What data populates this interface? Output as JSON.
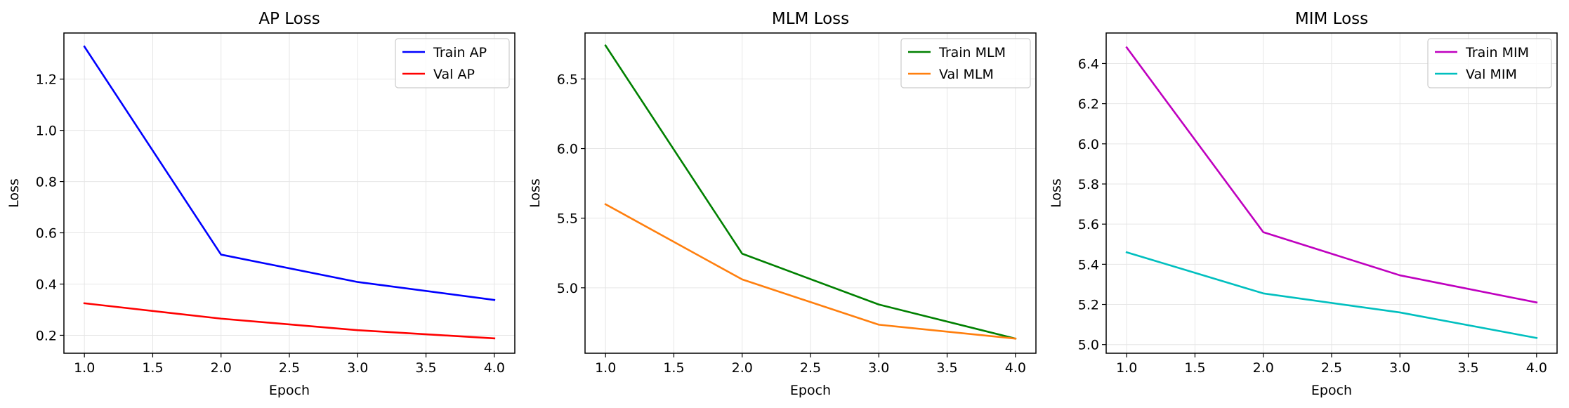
{
  "chart_data": [
    {
      "type": "line",
      "title": "AP Loss",
      "xlabel": "Epoch",
      "ylabel": "Loss",
      "xlim": [
        0.85,
        4.15
      ],
      "ylim": [
        0.13,
        1.38
      ],
      "xticks": [
        1.0,
        1.5,
        2.0,
        2.5,
        3.0,
        3.5,
        4.0
      ],
      "yticks": [
        0.2,
        0.4,
        0.6,
        0.8,
        1.0,
        1.2
      ],
      "tick_decimals": 1,
      "grid": true,
      "legend": "top-right",
      "x": [
        1,
        2,
        3,
        4
      ],
      "series": [
        {
          "name": "Train AP",
          "color": "#0000ff",
          "values": [
            1.327,
            0.515,
            0.408,
            0.338
          ]
        },
        {
          "name": "Val AP",
          "color": "#ff0000",
          "values": [
            0.325,
            0.265,
            0.22,
            0.188
          ]
        }
      ]
    },
    {
      "type": "line",
      "title": "MLM Loss",
      "xlabel": "Epoch",
      "ylabel": "Loss",
      "xlim": [
        0.85,
        4.15
      ],
      "ylim": [
        4.53,
        6.83
      ],
      "xticks": [
        1.0,
        1.5,
        2.0,
        2.5,
        3.0,
        3.5,
        4.0
      ],
      "yticks": [
        5.0,
        5.5,
        6.0,
        6.5
      ],
      "tick_decimals": 1,
      "grid": true,
      "legend": "top-right",
      "x": [
        1,
        2,
        3,
        4
      ],
      "series": [
        {
          "name": "Train MLM",
          "color": "#008000",
          "values": [
            6.74,
            5.245,
            4.88,
            4.635
          ]
        },
        {
          "name": "Val MLM",
          "color": "#ff7f0e",
          "values": [
            5.6,
            5.06,
            4.735,
            4.635
          ]
        }
      ]
    },
    {
      "type": "line",
      "title": "MIM Loss",
      "xlabel": "Epoch",
      "ylabel": "Loss",
      "xlim": [
        0.85,
        4.15
      ],
      "ylim": [
        4.957,
        6.552
      ],
      "xticks": [
        1.0,
        1.5,
        2.0,
        2.5,
        3.0,
        3.5,
        4.0
      ],
      "yticks": [
        5.0,
        5.2,
        5.4,
        5.6,
        5.8,
        6.0,
        6.2,
        6.4
      ],
      "tick_decimals": 1,
      "grid": true,
      "legend": "top-right",
      "x": [
        1,
        2,
        3,
        4
      ],
      "series": [
        {
          "name": "Train MIM",
          "color": "#bf00bf",
          "values": [
            6.48,
            5.56,
            5.345,
            5.21
          ]
        },
        {
          "name": "Val MIM",
          "color": "#00bfbf",
          "values": [
            5.46,
            5.255,
            5.16,
            5.033
          ]
        }
      ]
    }
  ]
}
